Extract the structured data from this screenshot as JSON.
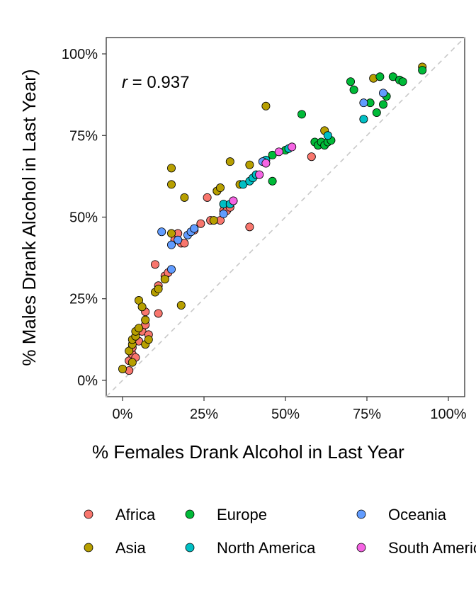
{
  "chart_data": {
    "type": "scatter",
    "xlabel": "% Females Drank Alcohol in Last Year",
    "ylabel": "% Males Drank Alcohol in Last Year)",
    "annotation": {
      "var": "r",
      "text": " = 0.937"
    },
    "xlim": [
      -0.05,
      1.05
    ],
    "ylim": [
      -0.05,
      1.05
    ],
    "x_ticks": [
      0,
      0.25,
      0.5,
      0.75,
      1.0
    ],
    "x_tick_labels": [
      "0%",
      "25%",
      "50%",
      "75%",
      "100%"
    ],
    "y_ticks": [
      0,
      0.25,
      0.5,
      0.75,
      1.0
    ],
    "y_tick_labels": [
      "0%",
      "25%",
      "50%",
      "75%",
      "100%"
    ],
    "reference_line": "y = x (dashed)",
    "grid": false,
    "legend_position": "bottom",
    "series": [
      {
        "name": "Africa",
        "color": "#F8766D",
        "points": [
          [
            0.02,
            0.03
          ],
          [
            0.02,
            0.06
          ],
          [
            0.03,
            0.08
          ],
          [
            0.03,
            0.1
          ],
          [
            0.04,
            0.07
          ],
          [
            0.05,
            0.12
          ],
          [
            0.06,
            0.15
          ],
          [
            0.07,
            0.17
          ],
          [
            0.07,
            0.21
          ],
          [
            0.08,
            0.14
          ],
          [
            0.1,
            0.355
          ],
          [
            0.11,
            0.29
          ],
          [
            0.11,
            0.205
          ],
          [
            0.13,
            0.32
          ],
          [
            0.14,
            0.33
          ],
          [
            0.16,
            0.43
          ],
          [
            0.17,
            0.45
          ],
          [
            0.18,
            0.42
          ],
          [
            0.19,
            0.42
          ],
          [
            0.22,
            0.46
          ],
          [
            0.24,
            0.48
          ],
          [
            0.26,
            0.56
          ],
          [
            0.27,
            0.49
          ],
          [
            0.29,
            0.58
          ],
          [
            0.3,
            0.49
          ],
          [
            0.31,
            0.52
          ],
          [
            0.32,
            0.52
          ],
          [
            0.33,
            0.53
          ],
          [
            0.34,
            0.55
          ],
          [
            0.39,
            0.47
          ],
          [
            0.58,
            0.685
          ]
        ]
      },
      {
        "name": "Asia",
        "color": "#B79F00",
        "points": [
          [
            0.0,
            0.035
          ],
          [
            0.02,
            0.09
          ],
          [
            0.03,
            0.055
          ],
          [
            0.03,
            0.11
          ],
          [
            0.03,
            0.125
          ],
          [
            0.04,
            0.135
          ],
          [
            0.04,
            0.15
          ],
          [
            0.05,
            0.16
          ],
          [
            0.05,
            0.245
          ],
          [
            0.06,
            0.225
          ],
          [
            0.07,
            0.11
          ],
          [
            0.07,
            0.185
          ],
          [
            0.08,
            0.125
          ],
          [
            0.1,
            0.27
          ],
          [
            0.11,
            0.28
          ],
          [
            0.13,
            0.31
          ],
          [
            0.15,
            0.45
          ],
          [
            0.15,
            0.6
          ],
          [
            0.15,
            0.65
          ],
          [
            0.18,
            0.23
          ],
          [
            0.19,
            0.56
          ],
          [
            0.28,
            0.49
          ],
          [
            0.29,
            0.58
          ],
          [
            0.3,
            0.59
          ],
          [
            0.33,
            0.67
          ],
          [
            0.36,
            0.6
          ],
          [
            0.39,
            0.66
          ],
          [
            0.44,
            0.84
          ],
          [
            0.6,
            0.72
          ],
          [
            0.62,
            0.765
          ],
          [
            0.77,
            0.925
          ],
          [
            0.92,
            0.96
          ]
        ]
      },
      {
        "name": "Europe",
        "color": "#00BA38",
        "points": [
          [
            0.46,
            0.61
          ],
          [
            0.46,
            0.69
          ],
          [
            0.5,
            0.705
          ],
          [
            0.55,
            0.815
          ],
          [
            0.59,
            0.73
          ],
          [
            0.6,
            0.72
          ],
          [
            0.61,
            0.73
          ],
          [
            0.62,
            0.72
          ],
          [
            0.63,
            0.73
          ],
          [
            0.64,
            0.735
          ],
          [
            0.7,
            0.915
          ],
          [
            0.71,
            0.89
          ],
          [
            0.76,
            0.85
          ],
          [
            0.78,
            0.82
          ],
          [
            0.79,
            0.93
          ],
          [
            0.8,
            0.845
          ],
          [
            0.81,
            0.87
          ],
          [
            0.83,
            0.93
          ],
          [
            0.85,
            0.92
          ],
          [
            0.86,
            0.915
          ],
          [
            0.92,
            0.95
          ]
        ]
      },
      {
        "name": "North America",
        "color": "#00BFC4",
        "points": [
          [
            0.31,
            0.54
          ],
          [
            0.33,
            0.54
          ],
          [
            0.37,
            0.6
          ],
          [
            0.39,
            0.61
          ],
          [
            0.4,
            0.62
          ],
          [
            0.41,
            0.63
          ],
          [
            0.44,
            0.675
          ],
          [
            0.51,
            0.71
          ],
          [
            0.63,
            0.75
          ],
          [
            0.74,
            0.8
          ]
        ]
      },
      {
        "name": "Oceania",
        "color": "#619CFF",
        "points": [
          [
            0.12,
            0.455
          ],
          [
            0.15,
            0.34
          ],
          [
            0.15,
            0.415
          ],
          [
            0.17,
            0.43
          ],
          [
            0.2,
            0.445
          ],
          [
            0.21,
            0.455
          ],
          [
            0.22,
            0.465
          ],
          [
            0.31,
            0.51
          ],
          [
            0.43,
            0.67
          ],
          [
            0.74,
            0.85
          ],
          [
            0.8,
            0.88
          ]
        ]
      },
      {
        "name": "South America",
        "color": "#F564E3",
        "points": [
          [
            0.34,
            0.55
          ],
          [
            0.42,
            0.63
          ],
          [
            0.44,
            0.665
          ],
          [
            0.48,
            0.7
          ],
          [
            0.52,
            0.715
          ]
        ]
      }
    ]
  }
}
